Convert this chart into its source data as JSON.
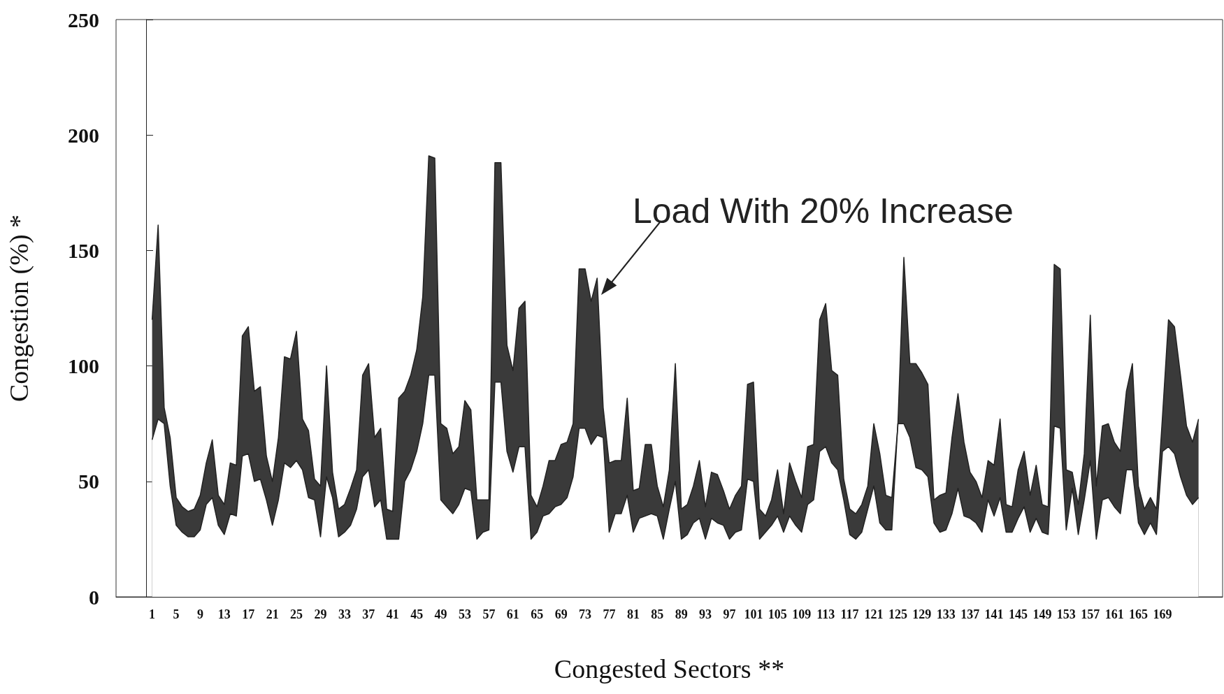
{
  "chart_data": {
    "type": "area",
    "xlabel": "Congested Sectors **",
    "ylabel": "Congestion (%) *",
    "x": [
      1,
      2,
      3,
      4,
      5,
      6,
      7,
      8,
      9,
      10,
      11,
      12,
      13,
      14,
      15,
      16,
      17,
      18,
      19,
      20,
      21,
      22,
      23,
      24,
      25,
      26,
      27,
      28,
      29,
      30,
      31,
      32,
      33,
      34,
      35,
      36,
      37,
      38,
      39,
      40,
      41,
      42,
      43,
      44,
      45,
      46,
      47,
      48,
      49,
      50,
      51,
      52,
      53,
      54,
      55,
      56,
      57,
      58,
      59,
      60,
      61,
      62,
      63,
      64,
      65,
      66,
      67,
      68,
      69,
      70,
      71,
      72,
      73,
      74,
      75,
      76,
      77,
      78,
      79,
      80,
      81,
      82,
      83,
      84,
      85,
      86,
      87,
      88,
      89,
      90,
      91,
      92,
      93,
      94,
      95,
      96,
      97,
      98,
      99,
      100,
      101,
      102,
      103,
      104,
      105,
      106,
      107,
      108,
      109,
      110,
      111,
      112,
      113,
      114,
      115,
      116,
      117,
      118,
      119,
      120,
      121,
      122,
      123,
      124,
      125,
      126,
      127,
      128,
      129,
      130,
      131,
      132,
      133,
      134,
      135,
      136,
      137,
      138,
      139,
      140,
      141,
      142,
      143,
      144,
      145,
      146,
      147,
      148,
      149,
      150,
      151,
      152,
      153,
      154,
      155,
      156,
      157,
      158,
      159,
      160,
      161,
      162,
      163,
      164,
      165,
      166,
      167,
      168,
      169,
      170,
      171,
      172,
      173,
      174,
      175
    ],
    "series": [
      {
        "color": "#3a3a3a",
        "values": [
          120,
          161,
          82,
          69,
          43,
          39,
          37,
          38,
          44,
          58,
          68,
          44,
          40,
          58,
          57,
          113,
          117,
          89,
          91,
          61,
          50,
          69,
          104,
          103,
          115,
          77,
          72,
          51,
          48,
          100,
          54,
          38,
          40,
          47,
          55,
          96,
          101,
          69,
          73,
          38,
          37,
          86,
          89,
          96,
          107,
          130,
          191,
          190,
          75,
          73,
          62,
          65,
          85,
          81,
          42,
          42,
          42,
          188,
          188,
          109,
          98,
          125,
          128,
          44,
          39,
          48,
          59,
          59,
          66,
          67,
          75,
          142,
          142,
          128,
          138,
          82,
          58,
          59,
          59,
          86,
          46,
          47,
          66,
          66,
          48,
          39,
          55,
          101,
          38,
          40,
          48,
          59,
          39,
          54,
          53,
          46,
          38,
          44,
          48,
          92,
          93,
          38,
          35,
          42,
          55,
          36,
          58,
          50,
          43,
          65,
          66,
          120,
          127,
          98,
          96,
          51,
          38,
          36,
          40,
          48,
          75,
          62,
          44,
          43,
          74,
          147,
          101,
          101,
          97,
          92,
          42,
          44,
          45,
          69,
          88,
          67,
          54,
          50,
          43,
          59,
          57,
          77,
          40,
          39,
          55,
          63,
          44,
          57,
          40,
          39,
          144,
          142,
          55,
          54,
          40,
          62,
          122,
          48,
          74,
          75,
          67,
          63,
          89,
          101,
          48,
          38,
          43,
          38,
          78,
          120,
          117,
          96,
          74,
          67,
          77
        ]
      },
      {
        "color": "#ffffff",
        "values": [
          68,
          77,
          75,
          48,
          31,
          28,
          26,
          26,
          29,
          40,
          43,
          31,
          27,
          36,
          35,
          61,
          62,
          50,
          51,
          42,
          31,
          42,
          58,
          56,
          59,
          55,
          43,
          42,
          26,
          52,
          43,
          26,
          28,
          31,
          38,
          52,
          55,
          39,
          42,
          25,
          25,
          25,
          50,
          55,
          63,
          75,
          96,
          96,
          42,
          39,
          36,
          40,
          47,
          46,
          25,
          28,
          29,
          93,
          93,
          63,
          54,
          65,
          65,
          25,
          28,
          35,
          36,
          39,
          40,
          43,
          52,
          73,
          73,
          66,
          70,
          69,
          28,
          36,
          36,
          44,
          28,
          34,
          35,
          36,
          35,
          25,
          38,
          50,
          25,
          27,
          32,
          34,
          25,
          34,
          32,
          31,
          25,
          28,
          29,
          51,
          50,
          25,
          28,
          31,
          35,
          28,
          35,
          31,
          28,
          40,
          42,
          63,
          65,
          58,
          55,
          42,
          27,
          25,
          28,
          38,
          48,
          32,
          29,
          29,
          75,
          75,
          69,
          56,
          55,
          52,
          32,
          28,
          29,
          36,
          47,
          35,
          34,
          32,
          28,
          42,
          35,
          43,
          28,
          28,
          34,
          39,
          28,
          34,
          28,
          27,
          74,
          73,
          29,
          47,
          27,
          42,
          59,
          25,
          42,
          43,
          39,
          36,
          55,
          55,
          32,
          27,
          32,
          27,
          63,
          65,
          62,
          52,
          44,
          40,
          43
        ]
      }
    ],
    "xlim": [
      -5,
      179
    ],
    "xticks": [
      1,
      5,
      9,
      13,
      17,
      21,
      25,
      29,
      33,
      37,
      41,
      45,
      49,
      53,
      57,
      61,
      65,
      69,
      73,
      77,
      81,
      85,
      89,
      93,
      97,
      101,
      105,
      109,
      113,
      117,
      121,
      125,
      129,
      133,
      137,
      141,
      145,
      149,
      153,
      157,
      161,
      165,
      169
    ],
    "ylim": [
      0,
      250
    ],
    "yticks": [
      0,
      50,
      100,
      150,
      200,
      250
    ],
    "annotations": [
      "Load With 20% Increase"
    ]
  }
}
